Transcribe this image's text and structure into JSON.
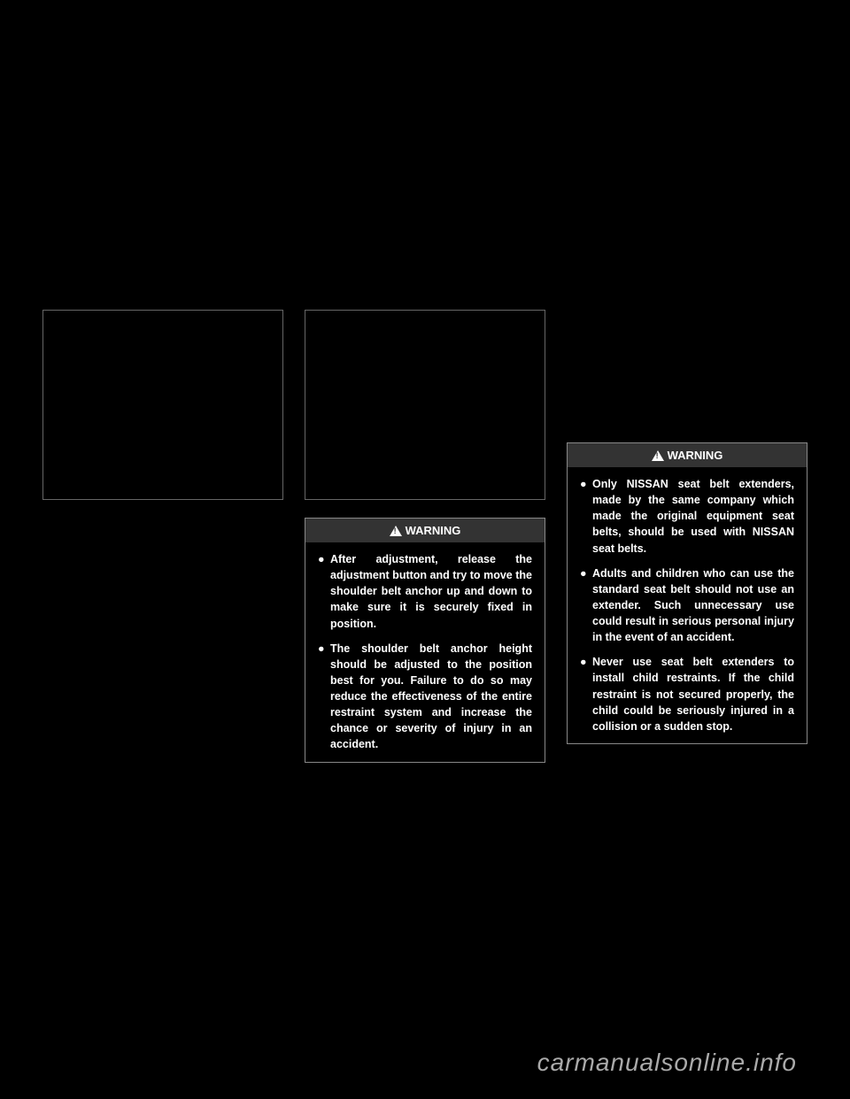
{
  "warnings": {
    "col2": {
      "title": "WARNING",
      "items": [
        "After adjustment, release the adjustment button and try to move the shoulder belt anchor up and down to make sure it is securely fixed in position.",
        "The shoulder belt anchor height should be adjusted to the position best for you. Failure to do so may reduce the effectiveness of the entire restraint system and increase the chance or severity of injury in an accident."
      ]
    },
    "col3": {
      "title": "WARNING",
      "items": [
        "Only NISSAN seat belt extenders, made by the same company which made the original equipment seat belts, should be used with NISSAN seat belts.",
        "Adults and children who can use the standard seat belt should not use an extender. Such unnecessary use could result in serious personal injury in the event of an accident.",
        "Never use seat belt extenders to install child restraints. If the child restraint is not secured properly, the child could be seriously injured in a collision or a sudden stop."
      ]
    }
  },
  "watermark": "carmanualsonline.info",
  "colors": {
    "background": "#000000",
    "text": "#ffffff",
    "border": "#666666",
    "warning_header_bg": "#333333",
    "watermark_text": "#aaaaaa"
  }
}
